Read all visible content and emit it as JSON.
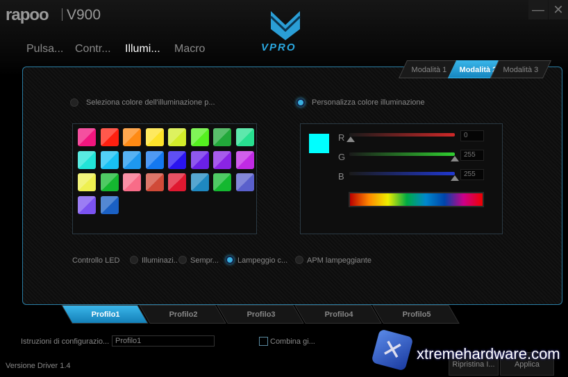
{
  "app": {
    "brand": "rapoo",
    "model": "V900",
    "logo_text": "VPRO",
    "minimize_icon": "minimize-icon",
    "close_icon": "close-icon"
  },
  "nav_tabs": [
    {
      "label": "Pulsa...",
      "active": false
    },
    {
      "label": "Contr...",
      "active": false
    },
    {
      "label": "Illumi...",
      "active": true
    },
    {
      "label": "Macro",
      "active": false
    }
  ],
  "mode_tabs": [
    {
      "label": "Modalità 1",
      "active": false
    },
    {
      "label": "Modalità 2",
      "active": true
    },
    {
      "label": "Modalità 3",
      "active": false
    }
  ],
  "color_options": {
    "preset_label": "Seleziona colore dell'illuminazione p...",
    "preset_selected": false,
    "custom_label": "Personalizza colore illuminazione",
    "custom_selected": true
  },
  "swatches": [
    "#f0167f",
    "#ff2010",
    "#ff8a14",
    "#fde22a",
    "#d2ec2a",
    "#55f020",
    "#22a83a",
    "#28e090",
    "#22e4d8",
    "#18c0f4",
    "#1e98f0",
    "#1478f0",
    "#2a14f0",
    "#6a20e8",
    "#8a24e4",
    "#c02ae4",
    "#eef050",
    "#14b830",
    "#f86c88",
    "#d04a38",
    "#e01830",
    "#1e88c0",
    "#14b830",
    "#5a60cc",
    "#7a52f0",
    "#1a60c4"
  ],
  "custom_color": {
    "preview": "#00ffff",
    "channels": [
      {
        "label": "R",
        "value": "0",
        "color": "#d02828"
      },
      {
        "label": "G",
        "value": "255",
        "color": "#30d030"
      },
      {
        "label": "B",
        "value": "255",
        "color": "#2038d0"
      }
    ]
  },
  "led_control": {
    "label": "Controllo LED",
    "options": [
      {
        "label": "Illuminazi..",
        "selected": false
      },
      {
        "label": "Sempr...",
        "selected": false
      },
      {
        "label": "Lampeggio c...",
        "selected": true
      },
      {
        "label": "APM lampeggiante",
        "selected": false
      }
    ]
  },
  "profiles": [
    {
      "label": "Profilo1",
      "active": true
    },
    {
      "label": "Profilo2",
      "active": false
    },
    {
      "label": "Profilo3",
      "active": false
    },
    {
      "label": "Profilo4",
      "active": false
    },
    {
      "label": "Profilo5",
      "active": false
    }
  ],
  "footer": {
    "config_label": "Istruzioni di configurazio...",
    "config_value": "Profilo1",
    "combine_label": "Combina gi...",
    "reset_label": "Ripristina I...",
    "apply_label": "Applica",
    "version": "Versione Driver 1.4",
    "watermark": "xtremehardware.com"
  },
  "accent": "#2aa8e0"
}
